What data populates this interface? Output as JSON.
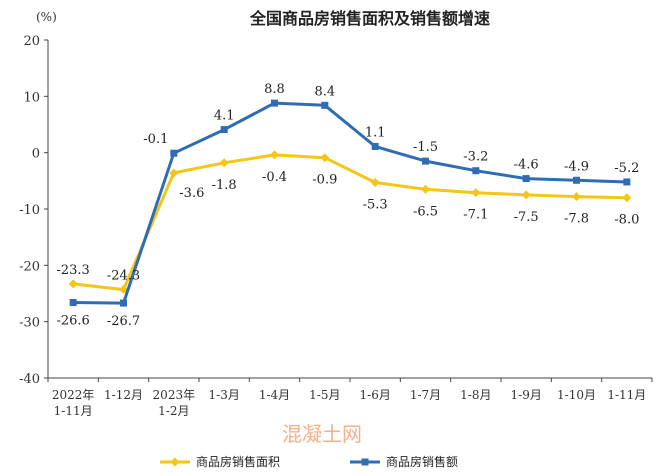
{
  "chart_data": {
    "type": "line",
    "title": "全国商品房销售面积及销售额增速",
    "unit_label": "(%)",
    "xlabel": "",
    "ylabel": "",
    "ylim": [
      -40,
      20
    ],
    "yticks": [
      20,
      10,
      0,
      -10,
      -20,
      -30,
      -40
    ],
    "categories": [
      [
        "2022年",
        "1-11月"
      ],
      [
        "1-12月"
      ],
      [
        "2023年",
        "1-2月"
      ],
      [
        "1-3月"
      ],
      [
        "1-4月"
      ],
      [
        "1-5月"
      ],
      [
        "1-6月"
      ],
      [
        "1-7月"
      ],
      [
        "1-8月"
      ],
      [
        "1-9月"
      ],
      [
        "1-10月"
      ],
      [
        "1-11月"
      ]
    ],
    "series": [
      {
        "name": "商品房销售面积",
        "color": "#f5c518",
        "marker": "diamond",
        "values": [
          -23.3,
          -24.3,
          -3.6,
          -1.8,
          -0.4,
          -0.9,
          -5.3,
          -6.5,
          -7.1,
          -7.5,
          -7.8,
          -8.0
        ],
        "labels": [
          "-23.3",
          "-24.3",
          "-3.6",
          "-1.8",
          "-0.4",
          "-0.9",
          "-5.3",
          "-6.5",
          "-7.1",
          "-7.5",
          "-7.8",
          "-8.0"
        ]
      },
      {
        "name": "商品房销售额",
        "color": "#2e6db4",
        "marker": "square",
        "values": [
          -26.6,
          -26.7,
          -0.1,
          4.1,
          8.8,
          8.4,
          1.1,
          -1.5,
          -3.2,
          -4.6,
          -4.9,
          -5.2
        ],
        "labels": [
          "-26.6",
          "-26.7",
          "-0.1",
          "4.1",
          "8.8",
          "8.4",
          "1.1",
          "-1.5",
          "-3.2",
          "-4.6",
          "-4.9",
          "-5.2"
        ]
      }
    ],
    "legend_position": "bottom",
    "grid": false
  },
  "watermark": "混凝土网"
}
